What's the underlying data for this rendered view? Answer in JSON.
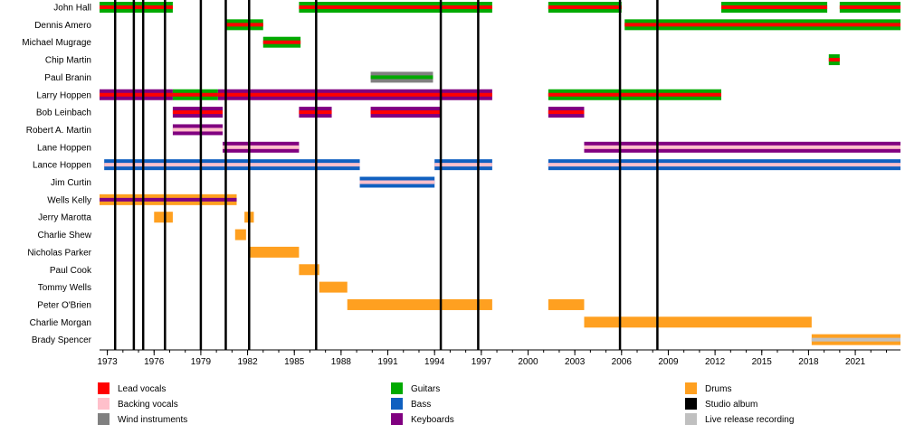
{
  "chart_data": {
    "type": "timeline",
    "title": "",
    "xlim": [
      1972.5,
      2023.9
    ],
    "tick_labels": [
      "1973",
      "1976",
      "1979",
      "1982",
      "1985",
      "1988",
      "1991",
      "1994",
      "1997",
      "2000",
      "2003",
      "2006",
      "2009",
      "2012",
      "2015",
      "2018",
      "2021"
    ],
    "minor_ticks_every_year": true,
    "studio_albums": [
      1973.5,
      1974.7,
      1975.3,
      1976.7,
      1979.0,
      1980.6,
      1982.1,
      1986.4,
      1994.4,
      1996.8,
      2005.9,
      2008.3
    ],
    "roles": {
      "lead_vocals": {
        "label": "Lead vocals",
        "color": "#ff0000"
      },
      "backing_vocals": {
        "label": "Backing vocals",
        "color": "#ffc0cb"
      },
      "wind": {
        "label": "Wind instruments",
        "color": "#808080"
      },
      "guitars": {
        "label": "Guitars",
        "color": "#00aa00"
      },
      "bass": {
        "label": "Bass",
        "color": "#1060c0"
      },
      "keyboards": {
        "label": "Keyboards",
        "color": "#800080"
      },
      "drums": {
        "label": "Drums",
        "color": "#ffa020"
      },
      "studio": {
        "label": "Studio album",
        "color": "#000000"
      },
      "live": {
        "label": "Live release recording",
        "color": "#c0c0c0"
      }
    },
    "legend_order": [
      [
        "lead_vocals",
        "backing_vocals",
        "wind"
      ],
      [
        "guitars",
        "bass",
        "keyboards"
      ],
      [
        "drums",
        "studio",
        "live"
      ]
    ],
    "members": [
      {
        "name": "John Hall",
        "periods": [
          {
            "from": 1972.5,
            "to": 1977.2,
            "outer": "guitars",
            "inner": "lead_vocals"
          },
          {
            "from": 1985.3,
            "to": 1997.7,
            "outer": "guitars",
            "inner": "lead_vocals"
          },
          {
            "from": 2001.3,
            "to": 2006.0,
            "outer": "guitars",
            "inner": "lead_vocals"
          },
          {
            "from": 2012.4,
            "to": 2019.2,
            "outer": "guitars",
            "inner": "lead_vocals"
          },
          {
            "from": 2020.0,
            "to": 2023.9,
            "outer": "guitars",
            "inner": "lead_vocals"
          }
        ]
      },
      {
        "name": "Dennis Amero",
        "periods": [
          {
            "from": 1980.6,
            "to": 1983.0,
            "outer": "guitars",
            "inner": "lead_vocals"
          },
          {
            "from": 2006.2,
            "to": 2023.9,
            "outer": "guitars",
            "inner": "lead_vocals"
          }
        ]
      },
      {
        "name": "Michael Mugrage",
        "periods": [
          {
            "from": 1983.0,
            "to": 1985.4,
            "outer": "guitars",
            "inner": "lead_vocals"
          }
        ]
      },
      {
        "name": "Chip Martin",
        "periods": [
          {
            "from": 2019.3,
            "to": 2020.0,
            "outer": "guitars",
            "inner": "lead_vocals"
          }
        ]
      },
      {
        "name": "Paul Branin",
        "periods": [
          {
            "from": 1989.9,
            "to": 1993.9,
            "outer": "wind",
            "inner": "guitars"
          }
        ]
      },
      {
        "name": "Larry Hoppen",
        "periods": [
          {
            "from": 1972.5,
            "to": 1977.2,
            "outer": "keyboards",
            "inner": "lead_vocals"
          },
          {
            "from": 1977.2,
            "to": 1980.1,
            "outer": "guitars",
            "inner": "lead_vocals"
          },
          {
            "from": 1980.1,
            "to": 1997.7,
            "outer": "keyboards",
            "inner": "lead_vocals"
          },
          {
            "from": 2001.3,
            "to": 2012.4,
            "outer": "guitars",
            "inner": "lead_vocals"
          }
        ]
      },
      {
        "name": "Bob Leinbach",
        "periods": [
          {
            "from": 1977.2,
            "to": 1980.4,
            "outer": "keyboards",
            "inner": "lead_vocals"
          },
          {
            "from": 1985.3,
            "to": 1987.4,
            "outer": "keyboards",
            "inner": "lead_vocals"
          },
          {
            "from": 1989.9,
            "to": 1994.4,
            "outer": "keyboards",
            "inner": "lead_vocals"
          },
          {
            "from": 2001.3,
            "to": 2003.6,
            "outer": "keyboards",
            "inner": "lead_vocals"
          }
        ]
      },
      {
        "name": "Robert A. Martin",
        "periods": [
          {
            "from": 1977.2,
            "to": 1980.4,
            "outer": "keyboards",
            "inner": "backing_vocals"
          }
        ]
      },
      {
        "name": "Lane Hoppen",
        "periods": [
          {
            "from": 1980.4,
            "to": 1985.3,
            "outer": "keyboards",
            "inner": "backing_vocals"
          },
          {
            "from": 2003.6,
            "to": 2023.9,
            "outer": "keyboards",
            "inner": "backing_vocals"
          }
        ]
      },
      {
        "name": "Lance Hoppen",
        "periods": [
          {
            "from": 1972.8,
            "to": 1989.2,
            "outer": "bass",
            "inner": "backing_vocals"
          },
          {
            "from": 1994.0,
            "to": 1997.7,
            "outer": "bass",
            "inner": "backing_vocals"
          },
          {
            "from": 2001.3,
            "to": 2023.9,
            "outer": "bass",
            "inner": "backing_vocals"
          }
        ]
      },
      {
        "name": "Jim Curtin",
        "periods": [
          {
            "from": 1989.2,
            "to": 1994.0,
            "outer": "bass",
            "inner": "backing_vocals"
          }
        ]
      },
      {
        "name": "Wells Kelly",
        "periods": [
          {
            "from": 1972.5,
            "to": 1981.3,
            "outer": "drums",
            "inner": "keyboards"
          }
        ]
      },
      {
        "name": "Jerry Marotta",
        "periods": [
          {
            "from": 1976.0,
            "to": 1977.2,
            "outer": "drums",
            "inner": null
          },
          {
            "from": 1981.8,
            "to": 1982.4,
            "outer": "drums",
            "inner": null
          }
        ]
      },
      {
        "name": "Charlie Shew",
        "periods": [
          {
            "from": 1981.2,
            "to": 1981.9,
            "outer": "drums",
            "inner": null
          }
        ]
      },
      {
        "name": "Nicholas Parker",
        "periods": [
          {
            "from": 1982.1,
            "to": 1985.3,
            "outer": "drums",
            "inner": null
          }
        ]
      },
      {
        "name": "Paul Cook",
        "periods": [
          {
            "from": 1985.3,
            "to": 1986.6,
            "outer": "drums",
            "inner": null
          }
        ]
      },
      {
        "name": "Tommy Wells",
        "periods": [
          {
            "from": 1986.6,
            "to": 1988.4,
            "outer": "drums",
            "inner": null
          }
        ]
      },
      {
        "name": "Peter O'Brien",
        "periods": [
          {
            "from": 1988.4,
            "to": 1997.7,
            "outer": "drums",
            "inner": null
          },
          {
            "from": 2001.3,
            "to": 2003.6,
            "outer": "drums",
            "inner": null
          }
        ]
      },
      {
        "name": "Charlie Morgan",
        "periods": [
          {
            "from": 2003.6,
            "to": 2018.2,
            "outer": "drums",
            "inner": null
          }
        ]
      },
      {
        "name": "Brady Spencer",
        "periods": [
          {
            "from": 2018.2,
            "to": 2023.9,
            "outer": "drums",
            "inner": "live"
          }
        ]
      }
    ]
  }
}
